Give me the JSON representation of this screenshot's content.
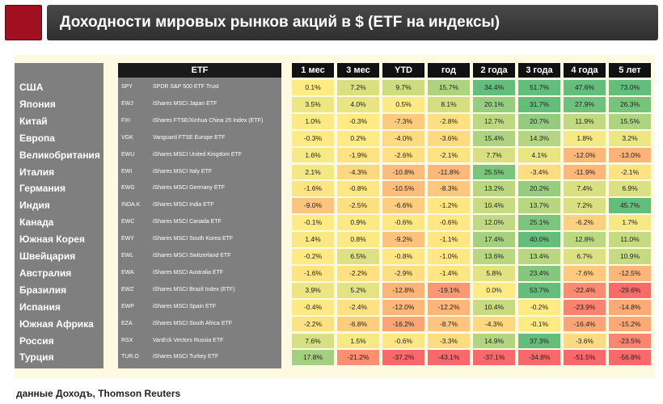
{
  "title": "Доходности мировых рынков акций в $ (ETF на индексы)",
  "source": "данные Доходъ, Thomson Reuters",
  "etf_header": "ETF",
  "colors": {
    "header_bg": "#111111",
    "label_col_bg": "#7f7f7f",
    "panel_bg": "#fef9e1",
    "logo": "#a01020"
  },
  "chart_data": {
    "type": "table",
    "columns": [
      "1 мес",
      "3 мес",
      "YTD",
      "год",
      "2 года",
      "3 года",
      "4 года",
      "5 лет"
    ],
    "rows": [
      {
        "country": "США",
        "ticker": "SPY",
        "etf": "SPDR S&P 500 ETF Trust",
        "values": [
          "0.1%",
          "7.2%",
          "9.7%",
          "15.7%",
          "34.4%",
          "51.7%",
          "47.6%",
          "73.0%"
        ]
      },
      {
        "country": "Япония",
        "ticker": "EWJ",
        "etf": "iShares MSCI Japan ETF",
        "values": [
          "3.5%",
          "4.0%",
          "0.5%",
          "8.1%",
          "20.1%",
          "31.7%",
          "27.9%",
          "26.3%"
        ]
      },
      {
        "country": "Китай",
        "ticker": "FXI",
        "etf": "iShares FTSE/Xinhua China 25 Index (ETF)",
        "values": [
          "1.0%",
          "-0.3%",
          "-7.3%",
          "-2.8%",
          "12.7%",
          "20.7%",
          "11.9%",
          "15.5%"
        ]
      },
      {
        "country": "Европа",
        "ticker": "VGK",
        "etf": "Vanguard FTSE Europe ETF",
        "values": [
          "-0.3%",
          "0.2%",
          "-4.0%",
          "-3.6%",
          "15.4%",
          "14.3%",
          "1.8%",
          "3.2%"
        ]
      },
      {
        "country": "Великобритания",
        "ticker": "EWU",
        "etf": "iShares MSCI United Kingdom ETF",
        "values": [
          "1.6%",
          "-1.9%",
          "-2.6%",
          "-2.1%",
          "7.7%",
          "4.1%",
          "-12.0%",
          "-13.0%"
        ]
      },
      {
        "country": "Италия",
        "ticker": "EWI",
        "etf": "iShares MSCI Italy ETF",
        "values": [
          "2.1%",
          "-4.3%",
          "-10.8%",
          "-11.8%",
          "25.5%",
          "-3.4%",
          "-11.9%",
          "-2.1%"
        ]
      },
      {
        "country": "Германия",
        "ticker": "EWG",
        "etf": "iShares MSCI Germany ETF",
        "values": [
          "-1.6%",
          "-0.8%",
          "-10.5%",
          "-8.3%",
          "13.2%",
          "20.2%",
          "7.4%",
          "6.9%"
        ]
      },
      {
        "country": "Индия",
        "ticker": "INDA.K",
        "etf": "iShares MSCI India ETF",
        "values": [
          "-9.0%",
          "-2.5%",
          "-6.6%",
          "-1.2%",
          "10.4%",
          "13.7%",
          "7.2%",
          "45.7%"
        ]
      },
      {
        "country": "Канада",
        "ticker": "EWC",
        "etf": "iShares MSCI Canada ETF",
        "values": [
          "-0.1%",
          "0.9%",
          "-0.6%",
          "-0.6%",
          "12.0%",
          "25.1%",
          "-6.2%",
          "1.7%"
        ]
      },
      {
        "country": "Южная Корея",
        "ticker": "EWY",
        "etf": "iShares MSCI South Korea ETF",
        "values": [
          "1.4%",
          "0.8%",
          "-9.2%",
          "-1.1%",
          "17.4%",
          "40.0%",
          "12.8%",
          "11.0%"
        ]
      },
      {
        "country": "Швейцария",
        "ticker": "EWL",
        "etf": "iShares MSCI Switzerland ETF",
        "values": [
          "-0.2%",
          "6.5%",
          "-0.8%",
          "-1.0%",
          "13.6%",
          "13.4%",
          "6.7%",
          "10.9%"
        ]
      },
      {
        "country": "Австралия",
        "ticker": "EWA",
        "etf": "iShares MSCI Australia ETF",
        "values": [
          "-1.6%",
          "-2.2%",
          "-2.9%",
          "-1.4%",
          "5.8%",
          "23.4%",
          "-7.6%",
          "-12.5%"
        ]
      },
      {
        "country": "Бразилия",
        "ticker": "EWZ",
        "etf": "iShares MSCI Brazil Index (ETF)",
        "values": [
          "3.9%",
          "5.2%",
          "-12.8%",
          "-19.1%",
          "0.0%",
          "53.7%",
          "-22.4%",
          "-29.6%"
        ]
      },
      {
        "country": "Испания",
        "ticker": "EWP",
        "etf": "iShares MSCI Spain ETF",
        "values": [
          "-0.4%",
          "-2.4%",
          "-12.0%",
          "-12.2%",
          "10.4%",
          "-0.2%",
          "-23.9%",
          "-14.8%"
        ]
      },
      {
        "country": "Южная Африка",
        "ticker": "EZA",
        "etf": "iShares MSCI South Africa ETF",
        "values": [
          "-2.2%",
          "-6.8%",
          "-16.2%",
          "-8.7%",
          "-4.3%",
          "-0.1%",
          "-16.4%",
          "-15.2%"
        ]
      },
      {
        "country": "Россия",
        "ticker": "RSX",
        "etf": "VanEck Vectors Russia ETF",
        "values": [
          "7.6%",
          "1.5%",
          "-0.6%",
          "-3.3%",
          "14.9%",
          "37.3%",
          "-3.6%",
          "-23.5%"
        ]
      },
      {
        "country": "Турция",
        "ticker": "TUR.O",
        "etf": "iShares MSCI Turkey ETF",
        "values": [
          "17.8%",
          "-21.2%",
          "-37.2%",
          "-43.1%",
          "-37.1%",
          "-34.8%",
          "-51.5%",
          "-56.8%"
        ]
      }
    ]
  }
}
